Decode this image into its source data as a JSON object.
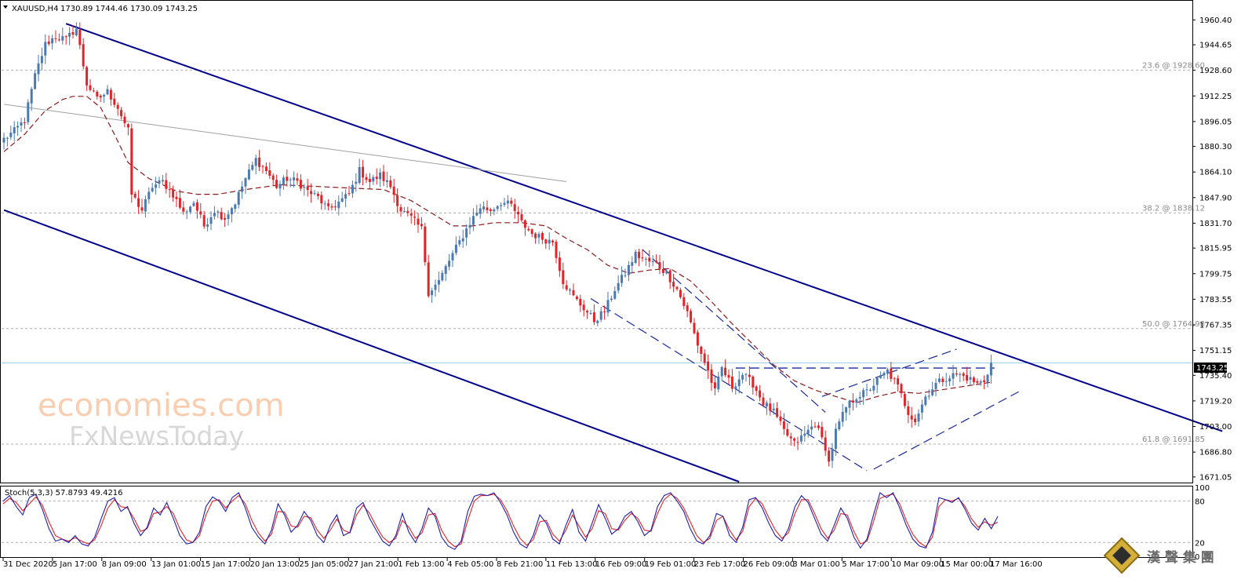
{
  "header": {
    "symbol": "XAUUSD,H4",
    "ohlc": "1730.89 1744.46 1730.09 1743.25",
    "stoch": "Stoch(5,3,3) 57.8793 49.4216"
  },
  "watermark": {
    "line1": "economies.com",
    "line2": "FxNewsToday",
    "corner": "漢 聲 集 團"
  },
  "colors": {
    "bull": "#4a7ab0",
    "bear": "#e0242a",
    "channel": "#00008b",
    "ma": "#8b1a1a",
    "stoch_main": "#1f1fa8",
    "stoch_signal": "#e0242a",
    "price_line": "#a8cce0"
  },
  "chart_data": {
    "type": "candlestick",
    "instrument": "XAUUSD",
    "timeframe": "H4",
    "current_price": "1743.25",
    "ylim": [
      1668,
      1972
    ],
    "y_ticks": [
      "1960.40",
      "1944.65",
      "1928.60",
      "1912.25",
      "1896.05",
      "1880.30",
      "1864.10",
      "1847.90",
      "1831.70",
      "1815.95",
      "1799.75",
      "1783.55",
      "1767.35",
      "1751.15",
      "1735.40",
      "1719.20",
      "1703.00",
      "1686.80",
      "1671.05"
    ],
    "x_labels": [
      "31 Dec 2020",
      "5 Jan 17:00",
      "8 Jan 09:00",
      "13 Jan 01:00",
      "15 Jan 17:00",
      "20 Jan 13:00",
      "25 Jan 05:00",
      "27 Jan 21:00",
      "1 Feb 13:00",
      "4 Feb 05:00",
      "8 Feb 21:00",
      "11 Feb 13:00",
      "16 Feb 09:00",
      "19 Feb 01:00",
      "23 Feb 17:00",
      "26 Feb 09:00",
      "3 Mar 01:00",
      "5 Mar 17:00",
      "10 Mar 09:00",
      "15 Mar 00:00",
      "17 Mar 16:00"
    ],
    "fib_levels": [
      {
        "label": "23.6 @ 1928.60",
        "price": 1928.6
      },
      {
        "label": "38.2 @ 1838.12",
        "price": 1838.12
      },
      {
        "label": "50.0 @ 1764.98",
        "price": 1764.98
      },
      {
        "label": "61.8 @ 1691.85",
        "price": 1691.85
      }
    ],
    "close_path": [
      [
        0,
        1885
      ],
      [
        3,
        1890
      ],
      [
        6,
        1897
      ],
      [
        9,
        1925
      ],
      [
        12,
        1945
      ],
      [
        15,
        1950
      ],
      [
        18,
        1948
      ],
      [
        20,
        1953
      ],
      [
        21,
        1955
      ],
      [
        24,
        1920
      ],
      [
        27,
        1910
      ],
      [
        30,
        1915
      ],
      [
        33,
        1905
      ],
      [
        36,
        1890
      ],
      [
        37,
        1850
      ],
      [
        40,
        1840
      ],
      [
        43,
        1855
      ],
      [
        46,
        1858
      ],
      [
        49,
        1850
      ],
      [
        52,
        1838
      ],
      [
        55,
        1845
      ],
      [
        58,
        1830
      ],
      [
        61,
        1840
      ],
      [
        64,
        1835
      ],
      [
        67,
        1845
      ],
      [
        70,
        1860
      ],
      [
        73,
        1872
      ],
      [
        76,
        1865
      ],
      [
        79,
        1855
      ],
      [
        82,
        1860
      ],
      [
        85,
        1858
      ],
      [
        88,
        1852
      ],
      [
        91,
        1848
      ],
      [
        94,
        1840
      ],
      [
        97,
        1845
      ],
      [
        100,
        1850
      ],
      [
        103,
        1865
      ],
      [
        106,
        1858
      ],
      [
        109,
        1862
      ],
      [
        112,
        1855
      ],
      [
        115,
        1840
      ],
      [
        118,
        1835
      ],
      [
        121,
        1828
      ],
      [
        123,
        1788
      ],
      [
        126,
        1795
      ],
      [
        129,
        1808
      ],
      [
        132,
        1820
      ],
      [
        135,
        1832
      ],
      [
        138,
        1842
      ],
      [
        141,
        1840
      ],
      [
        144,
        1845
      ],
      [
        147,
        1843
      ],
      [
        150,
        1832
      ],
      [
        153,
        1825
      ],
      [
        156,
        1822
      ],
      [
        159,
        1820
      ],
      [
        162,
        1795
      ],
      [
        165,
        1785
      ],
      [
        168,
        1778
      ],
      [
        171,
        1770
      ],
      [
        174,
        1776
      ],
      [
        177,
        1790
      ],
      [
        180,
        1800
      ],
      [
        183,
        1812
      ],
      [
        186,
        1808
      ],
      [
        189,
        1806
      ],
      [
        192,
        1800
      ],
      [
        195,
        1790
      ],
      [
        198,
        1775
      ],
      [
        201,
        1755
      ],
      [
        204,
        1738
      ],
      [
        206,
        1725
      ],
      [
        208,
        1740
      ],
      [
        211,
        1728
      ],
      [
        214,
        1736
      ],
      [
        217,
        1730
      ],
      [
        220,
        1718
      ],
      [
        223,
        1712
      ],
      [
        226,
        1700
      ],
      [
        229,
        1692
      ],
      [
        232,
        1698
      ],
      [
        235,
        1705
      ],
      [
        238,
        1690
      ],
      [
        239,
        1680
      ],
      [
        241,
        1700
      ],
      [
        244,
        1715
      ],
      [
        247,
        1722
      ],
      [
        250,
        1725
      ],
      [
        253,
        1732
      ],
      [
        256,
        1738
      ],
      [
        259,
        1728
      ],
      [
        262,
        1712
      ],
      [
        264,
        1707
      ],
      [
        267,
        1722
      ],
      [
        270,
        1730
      ],
      [
        273,
        1734
      ],
      [
        276,
        1736
      ],
      [
        279,
        1734
      ],
      [
        282,
        1730
      ],
      [
        284,
        1732
      ],
      [
        286,
        1743.25
      ]
    ],
    "moving_average": [
      [
        0,
        1877
      ],
      [
        6,
        1888
      ],
      [
        12,
        1903
      ],
      [
        17,
        1910
      ],
      [
        20,
        1912
      ],
      [
        24,
        1912
      ],
      [
        28,
        1905
      ],
      [
        32,
        1888
      ],
      [
        36,
        1870
      ],
      [
        42,
        1860
      ],
      [
        50,
        1852
      ],
      [
        56,
        1850
      ],
      [
        62,
        1850
      ],
      [
        70,
        1853
      ],
      [
        80,
        1856
      ],
      [
        90,
        1855
      ],
      [
        100,
        1854
      ],
      [
        110,
        1853
      ],
      [
        118,
        1846
      ],
      [
        124,
        1838
      ],
      [
        130,
        1830
      ],
      [
        136,
        1830
      ],
      [
        142,
        1832
      ],
      [
        150,
        1832
      ],
      [
        157,
        1830
      ],
      [
        163,
        1822
      ],
      [
        169,
        1815
      ],
      [
        175,
        1805
      ],
      [
        181,
        1800
      ],
      [
        187,
        1802
      ],
      [
        193,
        1803
      ],
      [
        199,
        1795
      ],
      [
        205,
        1782
      ],
      [
        211,
        1768
      ],
      [
        217,
        1755
      ],
      [
        223,
        1742
      ],
      [
        229,
        1732
      ],
      [
        235,
        1726
      ],
      [
        241,
        1722
      ],
      [
        247,
        1718
      ],
      [
        253,
        1722
      ],
      [
        259,
        1725
      ],
      [
        265,
        1724
      ],
      [
        271,
        1726
      ],
      [
        277,
        1728
      ],
      [
        283,
        1730
      ],
      [
        286,
        1731
      ]
    ],
    "upper_channel": {
      "from": [
        18,
        1958
      ],
      "to": [
        353,
        1700
      ]
    },
    "lower_channel": {
      "from": [
        0,
        1840
      ],
      "to": [
        213,
        1668
      ]
    },
    "resistance_line": {
      "from": [
        0,
        1907
      ],
      "to": [
        163,
        1858
      ]
    },
    "neckline": {
      "from": [
        212,
        1740
      ],
      "to": [
        287,
        1740
      ]
    },
    "wedge_upper": {
      "from": [
        237,
        1722
      ],
      "to": [
        276,
        1752
      ]
    },
    "wedge_lower": {
      "from": [
        252,
        1676
      ],
      "to": [
        294,
        1725
      ]
    },
    "falling_upper": {
      "from": [
        185,
        1815
      ],
      "to": [
        238,
        1712
      ]
    },
    "falling_lower": {
      "from": [
        170,
        1784
      ],
      "to": [
        250,
        1675
      ]
    },
    "stochastic": {
      "y_ticks": [
        "100",
        "80",
        "20",
        "0"
      ],
      "levels": [
        80,
        20
      ],
      "main": [
        80,
        88,
        72,
        60,
        85,
        90,
        68,
        40,
        22,
        25,
        20,
        30,
        18,
        15,
        28,
        55,
        80,
        85,
        65,
        72,
        48,
        30,
        42,
        70,
        60,
        78,
        55,
        30,
        18,
        20,
        35,
        72,
        86,
        80,
        65,
        85,
        92,
        70,
        42,
        28,
        18,
        38,
        76,
        60,
        35,
        45,
        65,
        52,
        30,
        20,
        45,
        60,
        30,
        35,
        70,
        78,
        55,
        38,
        22,
        15,
        30,
        62,
        35,
        20,
        40,
        70,
        58,
        28,
        15,
        10,
        22,
        65,
        87,
        90,
        88,
        92,
        78,
        60,
        35,
        18,
        12,
        30,
        60,
        48,
        25,
        18,
        45,
        68,
        35,
        22,
        48,
        75,
        55,
        32,
        40,
        58,
        65,
        50,
        30,
        38,
        72,
        88,
        92,
        80,
        65,
        40,
        22,
        18,
        30,
        62,
        58,
        30,
        20,
        42,
        82,
        85,
        70,
        48,
        30,
        22,
        40,
        72,
        88,
        78,
        55,
        32,
        22,
        45,
        70,
        55,
        28,
        12,
        25,
        60,
        92,
        85,
        92,
        70,
        45,
        25,
        15,
        12,
        35,
        85,
        82,
        78,
        85,
        68,
        48,
        38,
        55,
        40,
        57.9
      ],
      "signal": [
        76,
        84,
        78,
        66,
        76,
        86,
        74,
        50,
        30,
        25,
        22,
        27,
        22,
        18,
        24,
        45,
        70,
        82,
        72,
        70,
        55,
        36,
        40,
        62,
        64,
        72,
        62,
        40,
        24,
        20,
        30,
        60,
        80,
        82,
        70,
        80,
        88,
        76,
        52,
        34,
        22,
        32,
        65,
        64,
        44,
        42,
        58,
        56,
        38,
        26,
        38,
        54,
        38,
        34,
        60,
        74,
        62,
        44,
        28,
        20,
        26,
        52,
        42,
        26,
        34,
        60,
        62,
        38,
        22,
        14,
        18,
        52,
        80,
        88,
        88,
        90,
        82,
        66,
        44,
        26,
        16,
        24,
        50,
        52,
        32,
        22,
        38,
        60,
        44,
        28,
        40,
        66,
        62,
        40,
        38,
        52,
        62,
        55,
        38,
        36,
        62,
        82,
        90,
        84,
        70,
        50,
        30,
        20,
        26,
        52,
        58,
        38,
        24,
        36,
        72,
        84,
        76,
        56,
        38,
        26,
        34,
        62,
        82,
        82,
        62,
        40,
        26,
        38,
        62,
        60,
        36,
        18,
        22,
        50,
        84,
        88,
        90,
        76,
        52,
        32,
        20,
        14,
        28,
        72,
        82,
        80,
        84,
        72,
        54,
        42,
        50,
        45,
        49.4
      ]
    }
  }
}
